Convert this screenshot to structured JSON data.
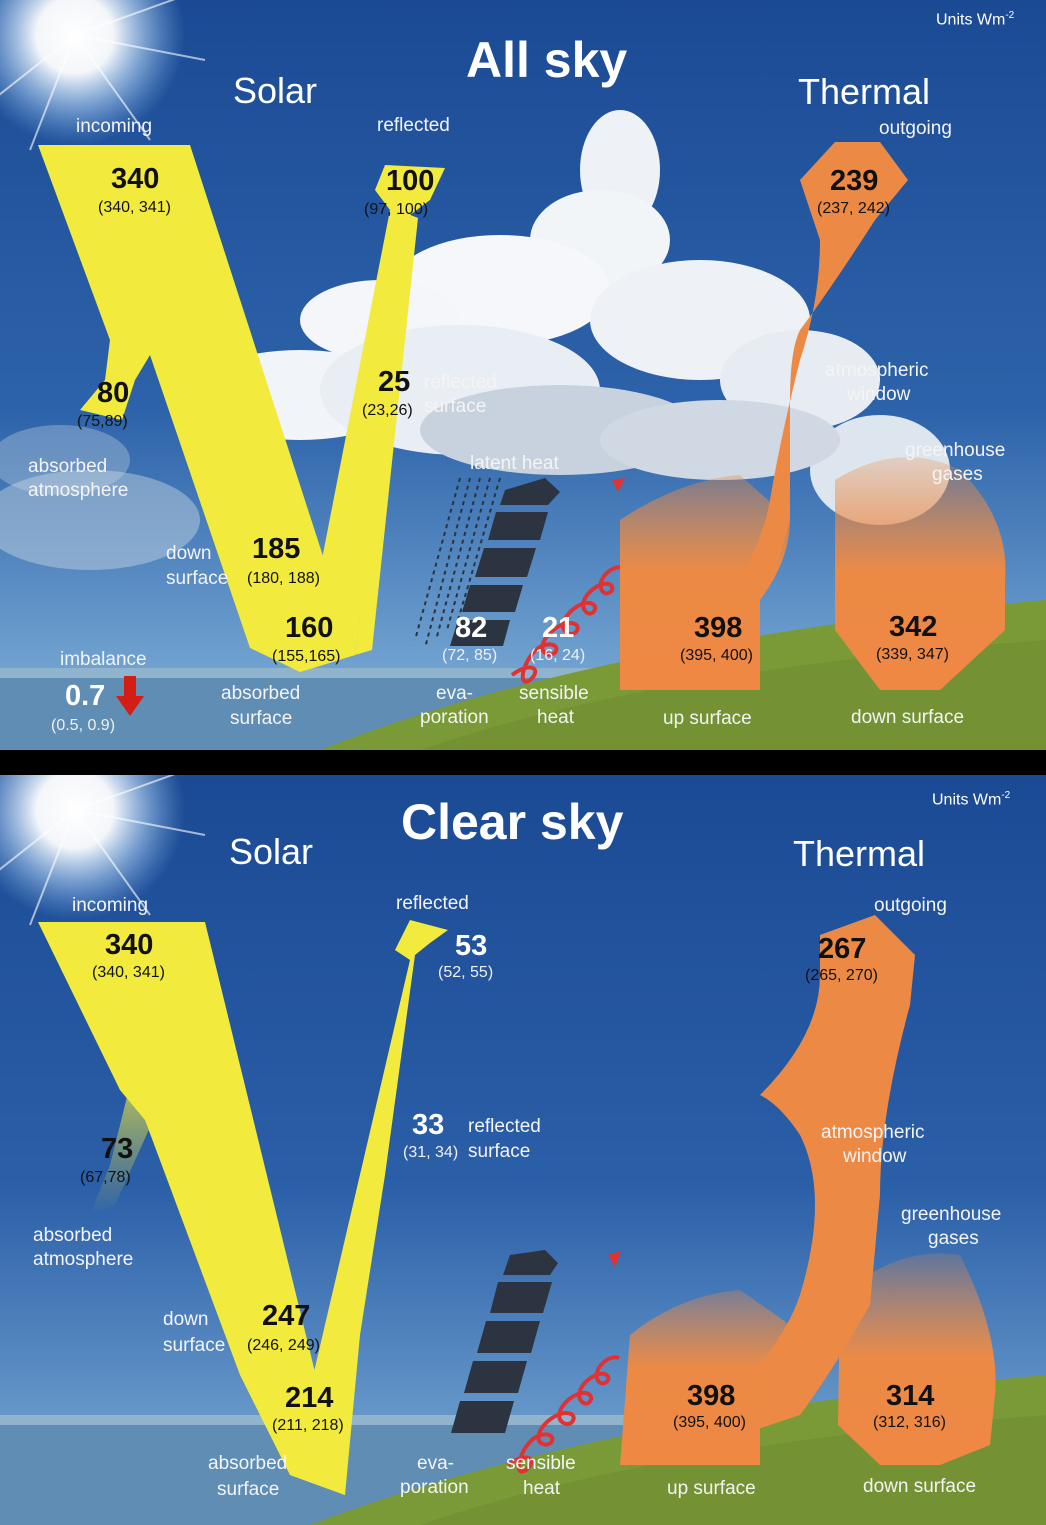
{
  "panels": {
    "all_sky": {
      "title": "All sky",
      "units": "Units Wm",
      "units_exp": "-2",
      "solar": "Solar",
      "thermal": "Thermal",
      "incoming_label": "incoming",
      "incoming_value": "340",
      "incoming_range": "(340, 341)",
      "reflected_label": "reflected",
      "reflected_value": "100",
      "reflected_range": "(97, 100)",
      "absorbed_atm_value": "80",
      "absorbed_atm_range": "(75,89)",
      "absorbed_atm_label_1": "absorbed",
      "absorbed_atm_label_2": "atmosphere",
      "reflected_surface_value": "25",
      "reflected_surface_range": "(23,26)",
      "reflected_surface_label_1": "reflected",
      "reflected_surface_label_2": "surface",
      "down_surface_label_1": "down",
      "down_surface_label_2": "surface",
      "down_surface_value": "185",
      "down_surface_range": "(180, 188)",
      "absorbed_surface_value": "160",
      "absorbed_surface_range": "(155,165)",
      "absorbed_surface_label_1": "absorbed",
      "absorbed_surface_label_2": "surface",
      "imbalance_label": "imbalance",
      "imbalance_value": "0.7",
      "imbalance_range": "(0.5, 0.9)",
      "latent_heat_label": "latent heat",
      "evaporation_value": "82",
      "evaporation_range": "(72, 85)",
      "evaporation_label_1": "eva-",
      "evaporation_label_2": "poration",
      "sensible_value": "21",
      "sensible_range": "(16, 24)",
      "sensible_label_1": "sensible",
      "sensible_label_2": "heat",
      "outgoing_label": "outgoing",
      "outgoing_value": "239",
      "outgoing_range": "(237, 242)",
      "window_label_1": "atmospheric",
      "window_label_2": "window",
      "ghg_label_1": "greenhouse",
      "ghg_label_2": "gases",
      "up_surface_value": "398",
      "up_surface_range": "(395, 400)",
      "up_surface_label": "up surface",
      "down_thermal_value": "342",
      "down_thermal_range": "(339, 347)",
      "down_thermal_label": "down surface"
    },
    "clear_sky": {
      "title": "Clear sky",
      "units": "Units Wm",
      "units_exp": "-2",
      "solar": "Solar",
      "thermal": "Thermal",
      "incoming_label": "incoming",
      "incoming_value": "340",
      "incoming_range": "(340, 341)",
      "reflected_label": "reflected",
      "reflected_value": "53",
      "reflected_range": "(52, 55)",
      "absorbed_atm_value": "73",
      "absorbed_atm_range": "(67,78)",
      "absorbed_atm_label_1": "absorbed",
      "absorbed_atm_label_2": "atmosphere",
      "reflected_surface_value": "33",
      "reflected_surface_range": "(31, 34)",
      "reflected_surface_label_1": "reflected",
      "reflected_surface_label_2": "surface",
      "down_surface_label_1": "down",
      "down_surface_label_2": "surface",
      "down_surface_value": "247",
      "down_surface_range": "(246, 249)",
      "absorbed_surface_value": "214",
      "absorbed_surface_range": "(211, 218)",
      "absorbed_surface_label_1": "absorbed",
      "absorbed_surface_label_2": "surface",
      "evaporation_label_1": "eva-",
      "evaporation_label_2": "poration",
      "sensible_label_1": "sensible",
      "sensible_label_2": "heat",
      "outgoing_label": "outgoing",
      "outgoing_value": "267",
      "outgoing_range": "(265, 270)",
      "window_label_1": "atmospheric",
      "window_label_2": "window",
      "ghg_label_1": "greenhouse",
      "ghg_label_2": "gases",
      "up_surface_value": "398",
      "up_surface_range": "(395, 400)",
      "up_surface_label": "up surface",
      "down_thermal_value": "314",
      "down_thermal_range": "(312, 316)",
      "down_thermal_label": "down surface"
    }
  },
  "colors": {
    "sky_top": "#1f4f9a",
    "sky_bottom": "#7fb0d8",
    "solar": "#f2ea3c",
    "thermal": "#ec8a45",
    "ground": "#7b9a3a",
    "sea": "#5e89b0",
    "imbalance_arrow": "#d41d14",
    "sensible_heat": "#e03232",
    "latent_heat": "#2b3440"
  },
  "icons": {
    "sun": "sun-icon",
    "cloud": "cloud-icon",
    "imbalance": "down-arrow-icon",
    "sensible": "spiral-arrow-icon",
    "latent": "latent-heat-arrow-icon",
    "rain": "rain-icon"
  }
}
